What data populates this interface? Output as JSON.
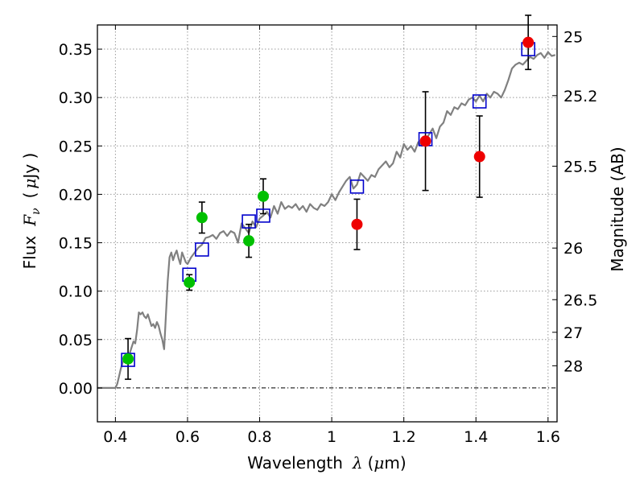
{
  "chart_data": {
    "type": "scatter",
    "xlabel": "Wavelength",
    "xlabel_symbol": "λ",
    "xlabel_unit_open": "(",
    "xlabel_unit_mu": "μ",
    "xlabel_unit_rest": "m)",
    "ylabel": "Flux",
    "ylabel_symbol": "F",
    "ylabel_subscript": "ν",
    "ylabel_unit_open": "(",
    "ylabel_unit_mu": "μ",
    "ylabel_unit_rest": "Jy )",
    "y2label": "Magnitude (AB)",
    "xlim": [
      0.35,
      1.625
    ],
    "ylim": [
      -0.035,
      0.375
    ],
    "grid": true,
    "x_ticks": [
      0.4,
      0.6,
      0.8,
      1.0,
      1.2,
      1.4,
      1.6
    ],
    "x_tick_labels": [
      "0.4",
      "0.6",
      "0.8",
      "1",
      "1.2",
      "1.4",
      "1.6"
    ],
    "y_ticks": [
      0.0,
      0.05,
      0.1,
      0.15,
      0.2,
      0.25,
      0.3,
      0.35
    ],
    "y_tick_labels": [
      "0.00",
      "0.05",
      "0.10",
      "0.15",
      "0.20",
      "0.25",
      "0.30",
      "0.35"
    ],
    "y2_ticks": [
      {
        "label": "25",
        "flux": 0.3631
      },
      {
        "label": "25.2",
        "flux": 0.302
      },
      {
        "label": "25.5",
        "flux": 0.2291
      },
      {
        "label": "26",
        "flux": 0.1445
      },
      {
        "label": "26.5",
        "flux": 0.0912
      },
      {
        "label": "27",
        "flux": 0.0575
      },
      {
        "label": "28",
        "flux": 0.0229
      }
    ],
    "colors": {
      "model": "#808080",
      "model_points": "#0000cc",
      "green_points": "#00c000",
      "red_points": "#ee0000",
      "error_bars": "#000000",
      "grid": "#999999"
    },
    "series": [
      {
        "kind": "model_spectrum",
        "x": [
          0.35,
          0.4,
          0.405,
          0.41,
          0.415,
          0.42,
          0.425,
          0.43,
          0.435,
          0.44,
          0.445,
          0.45,
          0.455,
          0.46,
          0.465,
          0.47,
          0.475,
          0.48,
          0.485,
          0.49,
          0.495,
          0.5,
          0.505,
          0.51,
          0.515,
          0.52,
          0.525,
          0.53,
          0.535,
          0.54,
          0.545,
          0.55,
          0.555,
          0.56,
          0.565,
          0.57,
          0.575,
          0.58,
          0.585,
          0.59,
          0.595,
          0.6,
          0.61,
          0.62,
          0.63,
          0.64,
          0.65,
          0.66,
          0.67,
          0.68,
          0.69,
          0.7,
          0.71,
          0.72,
          0.73,
          0.74,
          0.75,
          0.76,
          0.77,
          0.78,
          0.79,
          0.8,
          0.81,
          0.82,
          0.83,
          0.84,
          0.85,
          0.86,
          0.87,
          0.88,
          0.89,
          0.9,
          0.91,
          0.92,
          0.93,
          0.94,
          0.95,
          0.96,
          0.97,
          0.98,
          0.99,
          1.0,
          1.01,
          1.02,
          1.03,
          1.04,
          1.05,
          1.06,
          1.07,
          1.08,
          1.09,
          1.1,
          1.11,
          1.12,
          1.13,
          1.14,
          1.15,
          1.16,
          1.17,
          1.18,
          1.19,
          1.2,
          1.21,
          1.22,
          1.23,
          1.24,
          1.25,
          1.26,
          1.27,
          1.28,
          1.29,
          1.3,
          1.31,
          1.32,
          1.33,
          1.34,
          1.35,
          1.36,
          1.37,
          1.38,
          1.39,
          1.4,
          1.41,
          1.42,
          1.43,
          1.44,
          1.45,
          1.46,
          1.47,
          1.48,
          1.49,
          1.5,
          1.51,
          1.52,
          1.53,
          1.54,
          1.55,
          1.56,
          1.57,
          1.58,
          1.59,
          1.6,
          1.61,
          1.62
        ],
        "y": [
          0.0,
          0.0,
          0.004,
          0.012,
          0.02,
          0.026,
          0.03,
          0.034,
          0.032,
          0.036,
          0.042,
          0.048,
          0.046,
          0.06,
          0.078,
          0.076,
          0.078,
          0.074,
          0.072,
          0.076,
          0.07,
          0.064,
          0.066,
          0.062,
          0.068,
          0.064,
          0.056,
          0.05,
          0.04,
          0.075,
          0.11,
          0.135,
          0.14,
          0.132,
          0.138,
          0.142,
          0.134,
          0.128,
          0.14,
          0.135,
          0.13,
          0.128,
          0.135,
          0.14,
          0.145,
          0.148,
          0.155,
          0.156,
          0.158,
          0.154,
          0.16,
          0.162,
          0.157,
          0.162,
          0.16,
          0.15,
          0.17,
          0.165,
          0.16,
          0.172,
          0.166,
          0.175,
          0.178,
          0.182,
          0.176,
          0.188,
          0.18,
          0.192,
          0.185,
          0.188,
          0.186,
          0.19,
          0.184,
          0.188,
          0.182,
          0.19,
          0.186,
          0.184,
          0.19,
          0.188,
          0.192,
          0.2,
          0.194,
          0.202,
          0.208,
          0.214,
          0.218,
          0.206,
          0.21,
          0.222,
          0.218,
          0.214,
          0.22,
          0.218,
          0.226,
          0.23,
          0.234,
          0.228,
          0.232,
          0.244,
          0.238,
          0.252,
          0.246,
          0.25,
          0.244,
          0.254,
          0.25,
          0.256,
          0.262,
          0.268,
          0.258,
          0.27,
          0.274,
          0.286,
          0.282,
          0.29,
          0.288,
          0.294,
          0.292,
          0.298,
          0.3,
          0.296,
          0.302,
          0.296,
          0.304,
          0.3,
          0.306,
          0.304,
          0.3,
          0.308,
          0.318,
          0.33,
          0.334,
          0.336,
          0.334,
          0.338,
          0.342,
          0.34,
          0.344,
          0.346,
          0.341,
          0.347,
          0.343,
          0.344
        ]
      },
      {
        "kind": "model_photometry",
        "marker": "open-square",
        "x": [
          0.435,
          0.605,
          0.64,
          0.77,
          0.81,
          1.07,
          1.26,
          1.41,
          1.545
        ],
        "y": [
          0.029,
          0.117,
          0.143,
          0.172,
          0.178,
          0.208,
          0.257,
          0.296,
          0.35
        ]
      },
      {
        "kind": "observed_optical",
        "marker": "filled-circle",
        "x": [
          0.435,
          0.605,
          0.64,
          0.77,
          0.81
        ],
        "y": [
          0.03,
          0.109,
          0.176,
          0.152,
          0.198
        ],
        "err": [
          0.021,
          0.008,
          0.016,
          0.017,
          0.018
        ]
      },
      {
        "kind": "observed_nir",
        "marker": "filled-circle",
        "x": [
          1.07,
          1.26,
          1.41,
          1.545
        ],
        "y": [
          0.169,
          0.255,
          0.239,
          0.357
        ],
        "err": [
          0.026,
          0.051,
          0.042,
          0.028
        ]
      }
    ]
  }
}
